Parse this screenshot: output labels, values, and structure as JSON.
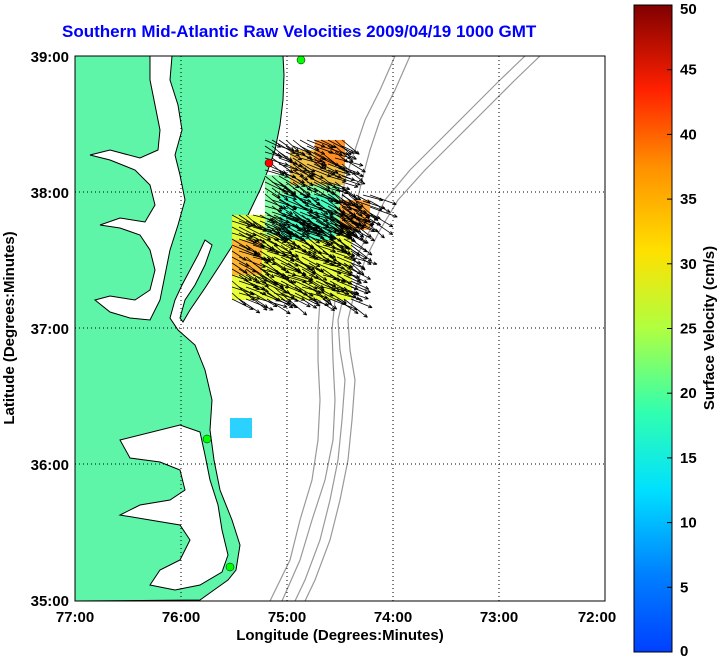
{
  "title": "Southern Mid-Atlantic Raw Velocities 2009/04/19 1000 GMT",
  "map": {
    "x_label": "Longitude (Degrees:Minutes)",
    "y_label": "Latitude (Degrees:Minutes)",
    "x_ticks": [
      "77:00",
      "76:00",
      "75:00",
      "74:00",
      "73:00",
      "72:00"
    ],
    "y_ticks": [
      "39:00",
      "38:00",
      "37:00",
      "36:00",
      "35:00"
    ],
    "lon_range": [
      -77,
      -72
    ],
    "lat_range": [
      35,
      39
    ],
    "land_color": "#5ef5a8",
    "coast_color": "#000000",
    "bathymetry_color": "#999999",
    "grid": "dotted",
    "stations": [
      {
        "color": "#ff0000",
        "lon": -75.16,
        "lat": 38.24
      },
      {
        "color": "#00ff00",
        "lon": -74.88,
        "lat": 38.99
      },
      {
        "color": "#00ff00",
        "lon": -75.75,
        "lat": 36.18
      },
      {
        "color": "#00ff00",
        "lon": -75.48,
        "lat": 35.25
      }
    ]
  },
  "colorbar": {
    "label": "Surface Velocity (cm/s)",
    "ticks": [
      "0",
      "5",
      "10",
      "15",
      "20",
      "25",
      "30",
      "35",
      "40",
      "45",
      "50"
    ],
    "range": [
      0,
      50
    ],
    "colormap": "jet"
  }
}
